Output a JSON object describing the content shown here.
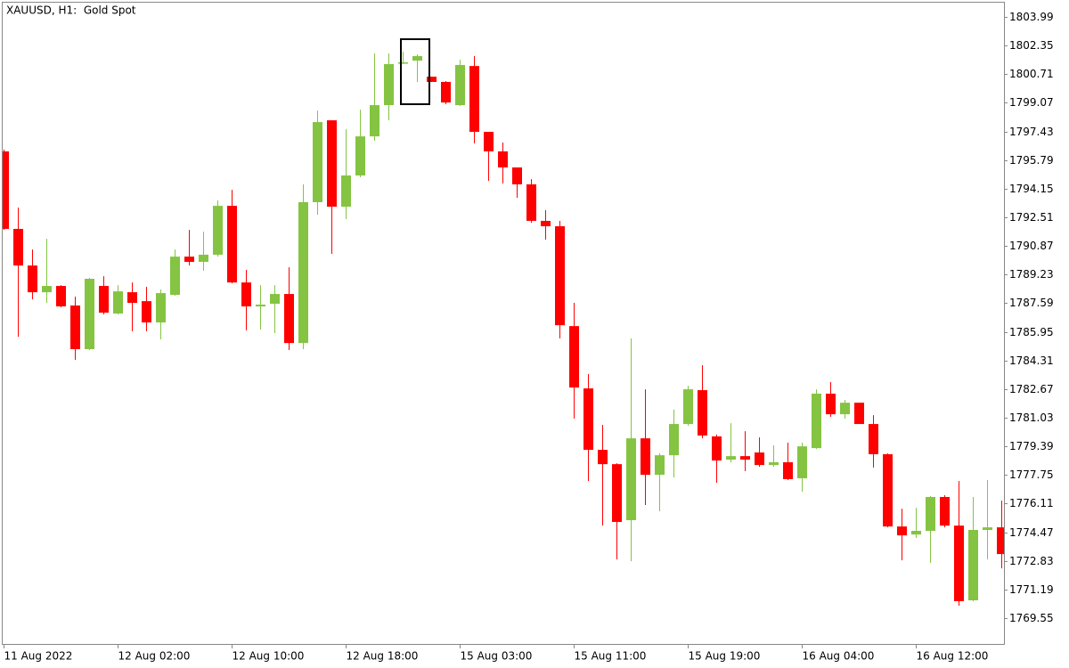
{
  "chart_data": {
    "type": "candlestick",
    "title": "XAUUSD, H1:  Gold Spot",
    "colors": {
      "up": "#84c442",
      "down": "#ff0000"
    },
    "categories": [
      "11 Aug 2022",
      null,
      null,
      null,
      null,
      null,
      null,
      null,
      "12 Aug 02:00",
      null,
      null,
      null,
      null,
      null,
      null,
      null,
      "12 Aug 10:00",
      null,
      null,
      null,
      null,
      null,
      null,
      null,
      "12 Aug 18:00",
      null,
      null,
      null,
      null,
      null,
      null,
      null,
      "15 Aug 03:00",
      null,
      null,
      null,
      null,
      null,
      null,
      null,
      "15 Aug 11:00",
      null,
      null,
      null,
      null,
      null,
      null,
      null,
      "15 Aug 19:00",
      null,
      null,
      null,
      null,
      null,
      null,
      null,
      "16 Aug 04:00",
      null,
      null,
      null,
      null,
      null,
      null,
      null,
      "16 Aug 12:00",
      null,
      null,
      null,
      null,
      null,
      null
    ],
    "open": [
      1796.29,
      1791.85,
      1789.75,
      1788.22,
      1788.58,
      1787.46,
      1784.96,
      1788.58,
      1787.0,
      1788.22,
      1787.71,
      1786.49,
      1788.07,
      1790.26,
      1789.96,
      1790.37,
      1793.17,
      1788.78,
      1787.41,
      1787.56,
      1788.12,
      1785.31,
      1793.38,
      1798.07,
      1793.12,
      1794.91,
      1797.15,
      1798.94,
      1801.34,
      1801.49,
      1800.57,
      1800.27,
      1798.94,
      1801.18,
      1797.41,
      1796.29,
      1795.37,
      1794.4,
      1792.31,
      1792.0,
      1786.28,
      1782.71,
      1779.19,
      1778.37,
      1775.16,
      1779.85,
      1777.76,
      1778.88,
      1780.67,
      1782.61,
      1779.96,
      1778.63,
      1778.83,
      1779.04,
      1778.32,
      1778.48,
      1777.56,
      1779.29,
      1782.41,
      1781.23,
      1781.89,
      1780.67,
      1778.94,
      1774.8,
      1774.34,
      1774.55,
      1776.49,
      1774.85,
      1770.57,
      1774.6,
      1774.75
    ],
    "high": [
      1796.39,
      1793.07,
      1790.67,
      1791.28,
      1788.63,
      1787.97,
      1789.04,
      1789.14,
      1788.63,
      1788.78,
      1788.53,
      1788.38,
      1790.67,
      1791.79,
      1791.69,
      1793.48,
      1794.09,
      1789.5,
      1788.63,
      1788.63,
      1789.65,
      1794.4,
      1798.63,
      1798.07,
      1797.56,
      1798.68,
      1801.9,
      1801.9,
      1802.0,
      1801.85,
      1800.57,
      1800.32,
      1801.54,
      1801.75,
      1797.41,
      1796.8,
      1795.37,
      1794.7,
      1792.92,
      1792.31,
      1787.61,
      1783.53,
      1780.62,
      1778.42,
      1785.57,
      1782.66,
      1778.99,
      1781.49,
      1782.86,
      1784.04,
      1780.06,
      1780.72,
      1780.26,
      1779.9,
      1779.45,
      1779.6,
      1779.6,
      1782.66,
      1783.07,
      1782.05,
      1781.89,
      1781.18,
      1778.99,
      1775.82,
      1775.87,
      1776.54,
      1776.59,
      1777.4,
      1776.49,
      1777.46,
      1776.28
    ],
    "low": [
      1791.79,
      1785.67,
      1787.81,
      1787.61,
      1787.36,
      1784.34,
      1784.91,
      1786.95,
      1786.95,
      1785.98,
      1785.98,
      1785.52,
      1788.02,
      1789.75,
      1789.45,
      1790.26,
      1788.73,
      1786.03,
      1786.08,
      1785.88,
      1784.91,
      1784.96,
      1792.66,
      1790.42,
      1792.41,
      1794.81,
      1796.9,
      1798.07,
      1801.29,
      1800.27,
      1800.27,
      1798.99,
      1798.89,
      1796.74,
      1794.6,
      1794.45,
      1793.63,
      1792.2,
      1791.23,
      1785.57,
      1780.98,
      1777.4,
      1774.85,
      1772.91,
      1772.81,
      1776.03,
      1775.67,
      1777.61,
      1780.57,
      1779.85,
      1777.3,
      1778.48,
      1777.97,
      1778.22,
      1778.22,
      1777.46,
      1776.79,
      1779.24,
      1781.08,
      1780.98,
      1780.67,
      1778.17,
      1774.75,
      1772.86,
      1774.14,
      1772.71,
      1774.75,
      1770.26,
      1770.52,
      1772.91,
      1772.4
    ],
    "close": [
      1791.85,
      1789.75,
      1788.22,
      1788.58,
      1787.41,
      1784.96,
      1788.99,
      1787.05,
      1788.27,
      1787.61,
      1786.49,
      1788.17,
      1790.26,
      1789.96,
      1790.37,
      1793.17,
      1788.78,
      1787.41,
      1787.51,
      1788.12,
      1785.31,
      1793.38,
      1797.97,
      1793.12,
      1794.91,
      1797.15,
      1798.94,
      1801.29,
      1801.39,
      1801.75,
      1800.27,
      1799.09,
      1801.24,
      1797.41,
      1796.29,
      1795.37,
      1794.4,
      1792.31,
      1792.0,
      1786.33,
      1782.76,
      1779.19,
      1778.37,
      1775.06,
      1779.85,
      1777.76,
      1778.88,
      1780.67,
      1782.66,
      1780.01,
      1778.58,
      1778.83,
      1778.63,
      1778.32,
      1778.48,
      1777.51,
      1779.39,
      1782.41,
      1781.23,
      1781.89,
      1780.67,
      1778.94,
      1774.8,
      1774.29,
      1774.55,
      1776.49,
      1774.85,
      1770.52,
      1774.6,
      1774.75,
      1773.22
    ],
    "ylim": [
      1768.12,
      1804.81
    ],
    "yticks": [
      1803.99,
      1802.35,
      1800.71,
      1799.07,
      1797.43,
      1795.79,
      1794.15,
      1792.51,
      1790.87,
      1789.23,
      1787.59,
      1785.95,
      1784.31,
      1782.67,
      1781.03,
      1779.39,
      1777.75,
      1776.11,
      1774.47,
      1772.83,
      1771.19,
      1769.55
    ]
  }
}
